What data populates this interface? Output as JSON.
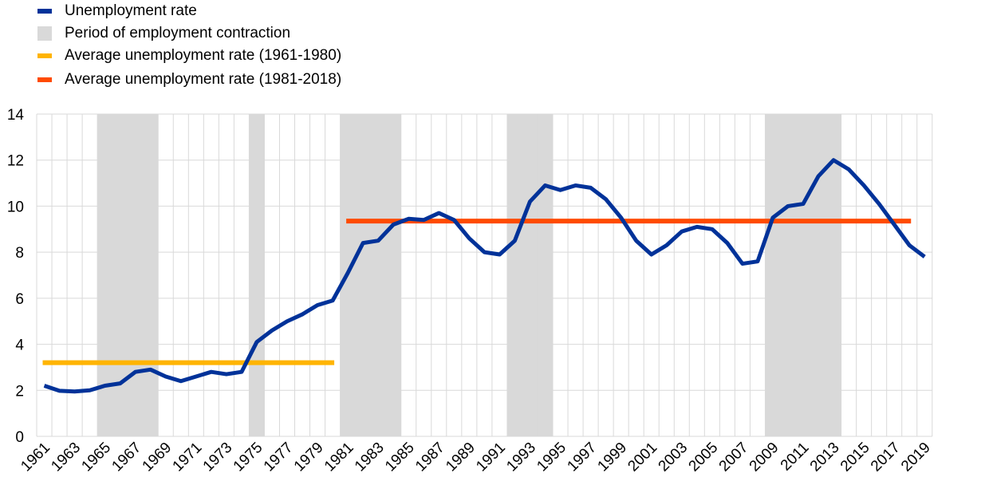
{
  "chart_data": {
    "type": "line",
    "title": "",
    "xlabel": "",
    "ylabel": "",
    "ylim": [
      0,
      14
    ],
    "yticks": [
      0,
      2,
      4,
      6,
      8,
      10,
      12,
      14
    ],
    "grid": true,
    "legend_placement": "top-left",
    "x": [
      1961,
      1962,
      1963,
      1964,
      1965,
      1966,
      1967,
      1968,
      1969,
      1970,
      1971,
      1972,
      1973,
      1974,
      1975,
      1976,
      1977,
      1978,
      1979,
      1980,
      1981,
      1982,
      1983,
      1984,
      1985,
      1986,
      1987,
      1988,
      1989,
      1990,
      1991,
      1992,
      1993,
      1994,
      1995,
      1996,
      1997,
      1998,
      1999,
      2000,
      2001,
      2002,
      2003,
      2004,
      2005,
      2006,
      2007,
      2008,
      2009,
      2010,
      2011,
      2012,
      2013,
      2014,
      2015,
      2016,
      2017,
      2018,
      2019
    ],
    "xtick_labels": [
      "1961",
      "1963",
      "1965",
      "1967",
      "1969",
      "1971",
      "1973",
      "1975",
      "1977",
      "1979",
      "1981",
      "1983",
      "1985",
      "1987",
      "1989",
      "1991",
      "1993",
      "1995",
      "1997",
      "1999",
      "2001",
      "2003",
      "2005",
      "2007",
      "2009",
      "2011",
      "2013",
      "2015",
      "2017",
      "2019"
    ],
    "series": [
      {
        "name": "Unemployment rate",
        "color": "#003299",
        "values": [
          2.2,
          1.98,
          1.95,
          2.0,
          2.2,
          2.3,
          2.8,
          2.9,
          2.6,
          2.4,
          2.6,
          2.8,
          2.7,
          2.8,
          4.1,
          4.6,
          5.0,
          5.3,
          5.7,
          5.9,
          7.1,
          8.4,
          8.5,
          9.2,
          9.45,
          9.4,
          9.7,
          9.4,
          8.6,
          8.0,
          7.9,
          8.5,
          10.2,
          10.9,
          10.7,
          10.9,
          10.8,
          10.3,
          9.5,
          8.5,
          7.9,
          8.3,
          8.9,
          9.1,
          9.0,
          8.4,
          7.5,
          7.6,
          9.5,
          10.0,
          10.1,
          11.3,
          12.0,
          11.6,
          10.9,
          10.1,
          9.2,
          8.3,
          7.8
        ]
      },
      {
        "name": "Average unemployment rate (1961-1980)",
        "color": "#FFB400",
        "from": 1961,
        "to": 1980,
        "value": 3.2
      },
      {
        "name": "Average unemployment rate (1981-2018)",
        "color": "#FF4B00",
        "from": 1981,
        "to": 2018,
        "value": 9.35
      }
    ],
    "shaded": {
      "name": "Period of employment contraction",
      "color": "#D9D9D9",
      "periods": [
        [
          1965,
          1968
        ],
        [
          1975,
          1975
        ],
        [
          1981,
          1984
        ],
        [
          1992,
          1994
        ],
        [
          2009,
          2013
        ]
      ]
    }
  }
}
